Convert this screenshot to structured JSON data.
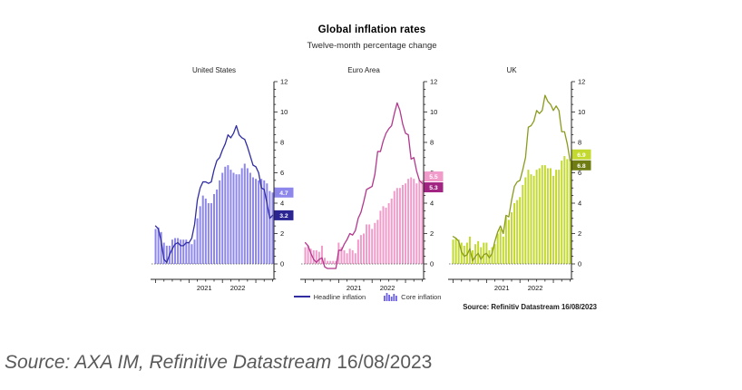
{
  "title": "Global inflation rates",
  "subtitle": "Twelve-month percentage change",
  "legend": {
    "headline": "Headline inflation",
    "core": "Core inflation"
  },
  "chart_source": "Source: Refinitiv Datastream 16/08/2023",
  "caption": {
    "text": "Source: AXA IM, Refinitive Datastream",
    "date": "16/08/2023"
  },
  "axis": {
    "ylim": [
      -1,
      12
    ],
    "yticks": [
      0,
      2,
      4,
      6,
      8,
      10,
      12
    ],
    "minor_step": 0.5,
    "x_year_labels": [
      "2021",
      "2022"
    ],
    "x_start": "2020-01",
    "x_end": "2023-07",
    "freq": "monthly"
  },
  "chart_data": [
    {
      "type": "bar+line",
      "panel": "United States",
      "series": [
        {
          "name": "Headline inflation",
          "style": "line",
          "color": "#312da1",
          "last_label": "3.2",
          "label_bg": "#2a2593",
          "label_fg": "#ffffff",
          "values": [
            2.5,
            2.3,
            1.5,
            0.3,
            0.1,
            0.6,
            1.0,
            1.3,
            1.4,
            1.2,
            1.2,
            1.4,
            1.4,
            1.7,
            2.6,
            4.2,
            5.0,
            5.4,
            5.4,
            5.3,
            5.4,
            6.2,
            6.8,
            7.0,
            7.5,
            7.9,
            8.5,
            8.3,
            8.6,
            9.1,
            8.5,
            8.3,
            8.2,
            7.7,
            7.1,
            6.5,
            6.4,
            6.0,
            5.0,
            4.9,
            4.0,
            3.0,
            3.2
          ]
        },
        {
          "name": "Core inflation",
          "style": "bar",
          "color": "#8d87ec",
          "last_label": "4.7",
          "label_bg": "#8d87ec",
          "label_fg": "#ffffff",
          "values": [
            2.3,
            2.4,
            2.1,
            1.4,
            1.2,
            1.2,
            1.6,
            1.7,
            1.7,
            1.6,
            1.6,
            1.6,
            1.4,
            1.3,
            1.6,
            3.0,
            3.8,
            4.5,
            4.3,
            4.0,
            4.0,
            4.6,
            4.9,
            5.5,
            6.0,
            6.4,
            6.5,
            6.2,
            6.0,
            5.9,
            5.9,
            6.3,
            6.6,
            6.3,
            6.0,
            5.7,
            5.6,
            5.5,
            5.6,
            5.5,
            5.3,
            4.8,
            4.7
          ]
        }
      ]
    },
    {
      "type": "bar+line",
      "panel": "Euro Area",
      "series": [
        {
          "name": "Headline inflation",
          "style": "line",
          "color": "#b2388e",
          "last_label": "5.3",
          "label_bg": "#a12483",
          "label_fg": "#ffffff",
          "values": [
            1.4,
            1.2,
            0.7,
            0.3,
            0.1,
            0.3,
            0.4,
            -0.2,
            -0.3,
            -0.3,
            -0.3,
            -0.3,
            0.9,
            0.9,
            1.3,
            1.6,
            2.0,
            1.9,
            2.2,
            3.0,
            3.4,
            4.1,
            4.9,
            5.0,
            5.1,
            5.9,
            7.4,
            7.4,
            8.1,
            8.6,
            8.9,
            9.1,
            9.9,
            10.6,
            10.1,
            9.2,
            8.6,
            8.5,
            6.9,
            7.0,
            6.1,
            5.5,
            5.3
          ]
        },
        {
          "name": "Core inflation",
          "style": "bar",
          "color": "#f09bca",
          "last_label": "5.5",
          "label_bg": "#f09bca",
          "label_fg": "#ffffff",
          "values": [
            1.1,
            1.2,
            1.0,
            0.9,
            0.9,
            0.8,
            1.2,
            0.4,
            0.2,
            0.2,
            0.2,
            0.2,
            1.4,
            1.1,
            0.9,
            0.7,
            1.0,
            0.9,
            0.7,
            1.6,
            1.9,
            2.0,
            2.6,
            2.6,
            2.3,
            2.7,
            2.9,
            3.5,
            3.8,
            3.7,
            4.0,
            4.3,
            4.8,
            5.0,
            5.0,
            5.2,
            5.3,
            5.6,
            5.7,
            5.6,
            5.3,
            5.5,
            5.5
          ]
        }
      ]
    },
    {
      "type": "bar+line",
      "panel": "UK",
      "series": [
        {
          "name": "Headline inflation",
          "style": "line",
          "color": "#8b9a1d",
          "last_label": "6.8",
          "label_bg": "#6e7c12",
          "label_fg": "#ffffff",
          "values": [
            1.8,
            1.7,
            1.5,
            0.8,
            0.5,
            0.6,
            1.0,
            0.2,
            0.5,
            0.7,
            0.3,
            0.6,
            0.7,
            0.4,
            0.7,
            1.5,
            2.1,
            2.5,
            2.0,
            3.2,
            3.1,
            4.2,
            5.1,
            5.4,
            5.5,
            6.2,
            7.0,
            9.0,
            9.1,
            9.4,
            10.1,
            9.9,
            10.1,
            11.1,
            10.7,
            10.5,
            10.1,
            10.4,
            10.1,
            8.7,
            8.7,
            7.9,
            6.8
          ]
        },
        {
          "name": "Core inflation",
          "style": "bar",
          "color": "#c3d930",
          "last_label": "6.9",
          "label_bg": "#c3d930",
          "label_fg": "#ffffff",
          "values": [
            1.6,
            1.7,
            1.6,
            1.4,
            1.2,
            1.4,
            1.8,
            0.9,
            1.3,
            1.5,
            1.1,
            1.4,
            1.4,
            0.9,
            1.1,
            1.3,
            2.0,
            2.3,
            1.8,
            3.1,
            2.9,
            3.4,
            4.0,
            4.2,
            4.4,
            5.2,
            5.7,
            6.2,
            5.9,
            5.8,
            6.2,
            6.3,
            6.5,
            6.5,
            6.3,
            6.3,
            5.8,
            6.2,
            6.2,
            6.8,
            7.1,
            6.9,
            6.9
          ]
        }
      ]
    }
  ]
}
